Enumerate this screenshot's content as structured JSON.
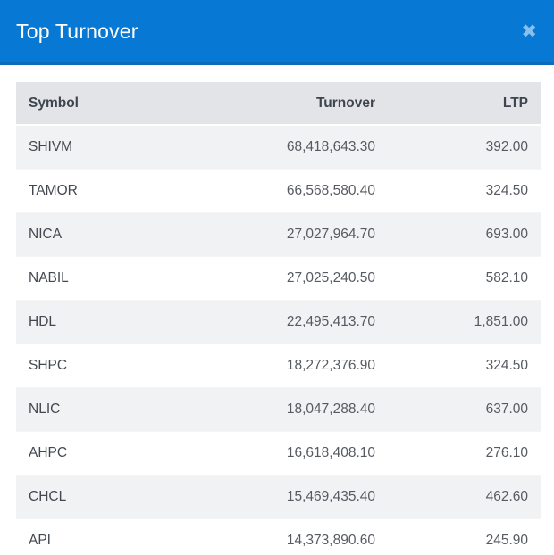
{
  "modal": {
    "title": "Top Turnover",
    "close_icon_glyph": "✖"
  },
  "table": {
    "columns": [
      {
        "key": "symbol",
        "label": "Symbol",
        "align": "left"
      },
      {
        "key": "turnover",
        "label": "Turnover",
        "align": "right"
      },
      {
        "key": "ltp",
        "label": "LTP",
        "align": "right"
      }
    ],
    "rows": [
      {
        "symbol": "SHIVM",
        "turnover": "68,418,643.30",
        "ltp": "392.00"
      },
      {
        "symbol": "TAMOR",
        "turnover": "66,568,580.40",
        "ltp": "324.50"
      },
      {
        "symbol": "NICA",
        "turnover": "27,027,964.70",
        "ltp": "693.00"
      },
      {
        "symbol": "NABIL",
        "turnover": "27,025,240.50",
        "ltp": "582.10"
      },
      {
        "symbol": "HDL",
        "turnover": "22,495,413.70",
        "ltp": "1,851.00"
      },
      {
        "symbol": "SHPC",
        "turnover": "18,272,376.90",
        "ltp": "324.50"
      },
      {
        "symbol": "NLIC",
        "turnover": "18,047,288.40",
        "ltp": "637.00"
      },
      {
        "symbol": "AHPC",
        "turnover": "16,618,408.10",
        "ltp": "276.10"
      },
      {
        "symbol": "CHCL",
        "turnover": "15,469,435.40",
        "ltp": "462.60"
      },
      {
        "symbol": "API",
        "turnover": "14,373,890.60",
        "ltp": "245.90"
      }
    ]
  },
  "colors": {
    "header_bg": "#0779d4",
    "header_border": "#0c6cb9",
    "header_text": "#ffffff",
    "close_icon": "#8cc0ec",
    "table_header_bg": "#e2e4e8",
    "row_stripe_bg": "#f1f2f3",
    "symbol_text": "#434850",
    "value_text": "#565a61"
  }
}
